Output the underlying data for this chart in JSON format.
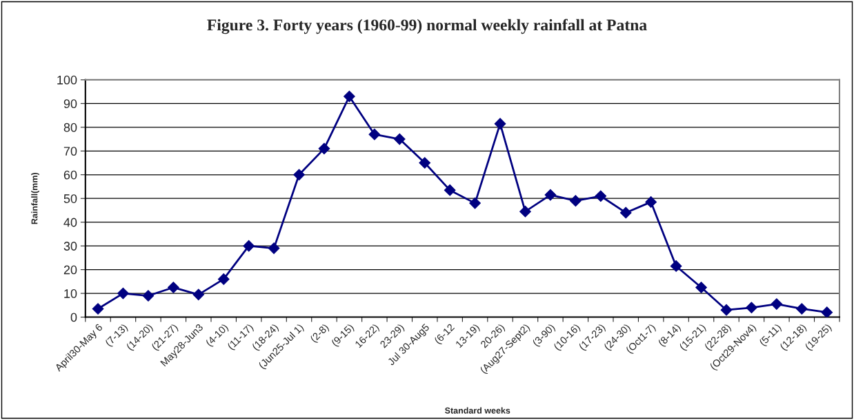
{
  "chart_data": {
    "type": "line",
    "title": "Figure 3. Forty years (1960-99) normal weekly rainfall at Patna",
    "xlabel": "Standard weeks",
    "ylabel": "Rainfall(mm)",
    "categories": [
      "April30-May 6",
      "(7-13)",
      "(14-20)",
      "(21-27)",
      "May28-Jun3",
      "(4-10)",
      "(11-17)",
      "(18-24)",
      "(Jun25-Jul 1)",
      "(2-8)",
      "(9-15)",
      "16-22)",
      "23-29)",
      "Jul 30-Aug5",
      "(6-12",
      "13-19)",
      "20-26)",
      "(Aug27-Sept2)",
      "(3-90)",
      "(10-16)",
      "(17-23)",
      "(24-30)",
      "(Oct1-7)",
      "(8-14)",
      "(15-21)",
      "(22-28)",
      "(Oct29-Nov4)",
      "(5-11)",
      "(12-18)",
      "(19-25)"
    ],
    "series": [
      {
        "color": "#000080",
        "values": [
          3.5,
          10,
          9,
          12.5,
          9.5,
          16,
          30,
          29,
          60,
          71,
          93,
          77,
          75,
          65,
          53.5,
          48,
          81.5,
          44.5,
          51.5,
          49,
          51,
          44,
          48.5,
          21.5,
          12.5,
          3,
          4,
          5.5,
          3.5,
          2
        ]
      }
    ],
    "ylim": [
      0,
      100
    ],
    "yticks": [
      0,
      10,
      20,
      30,
      40,
      50,
      60,
      70,
      80,
      90,
      100
    ],
    "grid": "y",
    "marker": "diamond",
    "line_style": "solid",
    "legend": false
  }
}
